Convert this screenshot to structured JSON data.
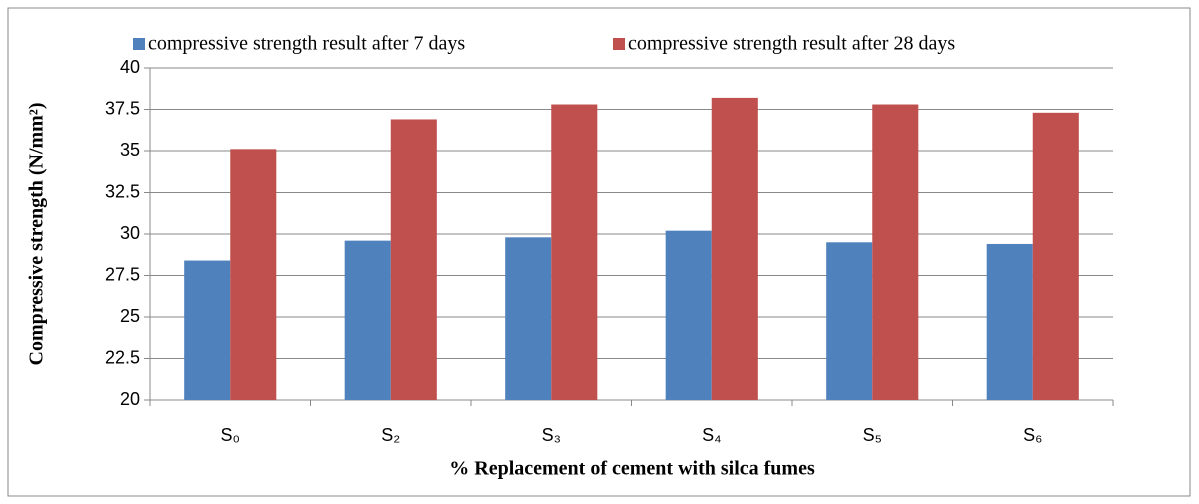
{
  "chart_data": {
    "type": "bar",
    "ylabel": "Compressive strength (N/mm²)",
    "xlabel": "% Replacement  of cement with  silca fumes",
    "categories": [
      "S₀",
      "S₂",
      "S₃",
      "S₄",
      "S₅",
      "S₆"
    ],
    "series": [
      {
        "name": "compressive strength result after 7 days",
        "color": "#4f81bd",
        "values": [
          28.4,
          29.6,
          29.8,
          30.2,
          29.5,
          29.4
        ]
      },
      {
        "name": "compressive strength result after 28 days",
        "color": "#c0504d",
        "values": [
          35.1,
          36.9,
          37.8,
          38.2,
          37.8,
          37.3
        ]
      }
    ],
    "ylim": [
      20,
      40
    ],
    "yticks": [
      20,
      22.5,
      25,
      27.5,
      30,
      32.5,
      35,
      37.5,
      40
    ],
    "grid": true,
    "legend": "top"
  }
}
